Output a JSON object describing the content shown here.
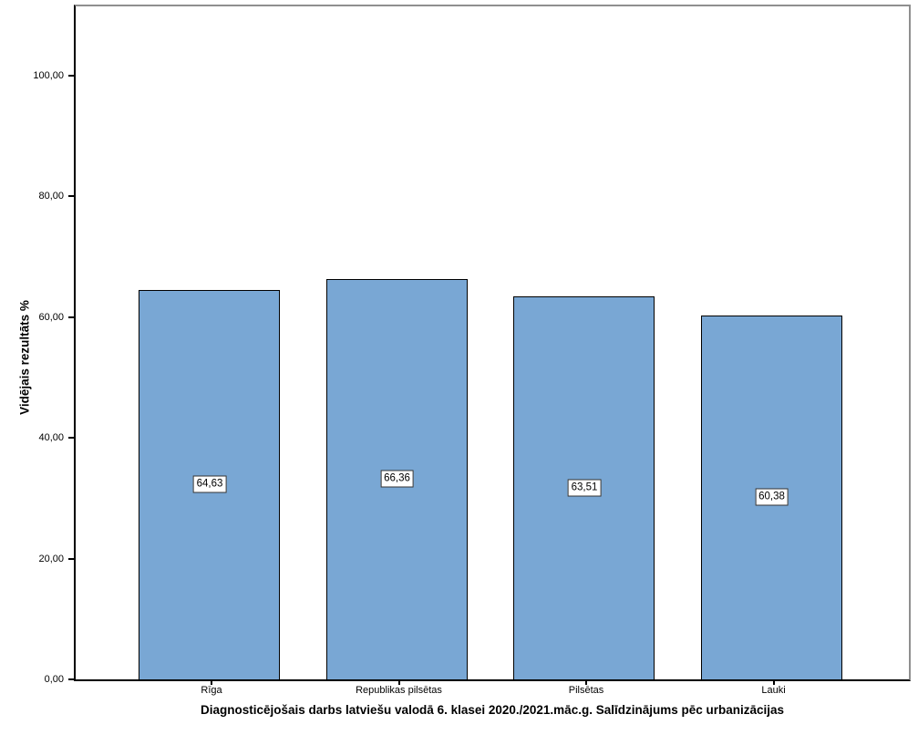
{
  "chart_data": {
    "type": "bar",
    "title": "Diagnosticējošais darbs latviešu valodā 6. klasei 2020./2021.māc.g. Salīdzinājums pēc urbanizācijas",
    "ylabel": "Vidējais rezultāts %",
    "xlabel": "",
    "categories": [
      "Rīga",
      "Republikas pilsētas",
      "Pilsētas",
      "Lauki"
    ],
    "values": [
      64.63,
      66.36,
      63.51,
      60.38
    ],
    "bar_value_labels": [
      "64,63",
      "66,36",
      "63,51",
      "60,38"
    ],
    "y_ticks": [
      {
        "value": 0,
        "label": "0,00"
      },
      {
        "value": 20,
        "label": "20,00"
      },
      {
        "value": 40,
        "label": "40,00"
      },
      {
        "value": 60,
        "label": "60,00"
      },
      {
        "value": 80,
        "label": "80,00"
      },
      {
        "value": 100,
        "label": "100,00"
      }
    ],
    "ylim": [
      0,
      111.5
    ],
    "grid": false,
    "legend_position": "none",
    "colors": {
      "bar_fill": "#79a7d4",
      "bar_border": "#000000",
      "axis_line": "#000000",
      "frame_line": "#8f8f8f",
      "value_label_bg": "#ffffff",
      "value_label_border": "#333333",
      "text": "#000000"
    }
  }
}
